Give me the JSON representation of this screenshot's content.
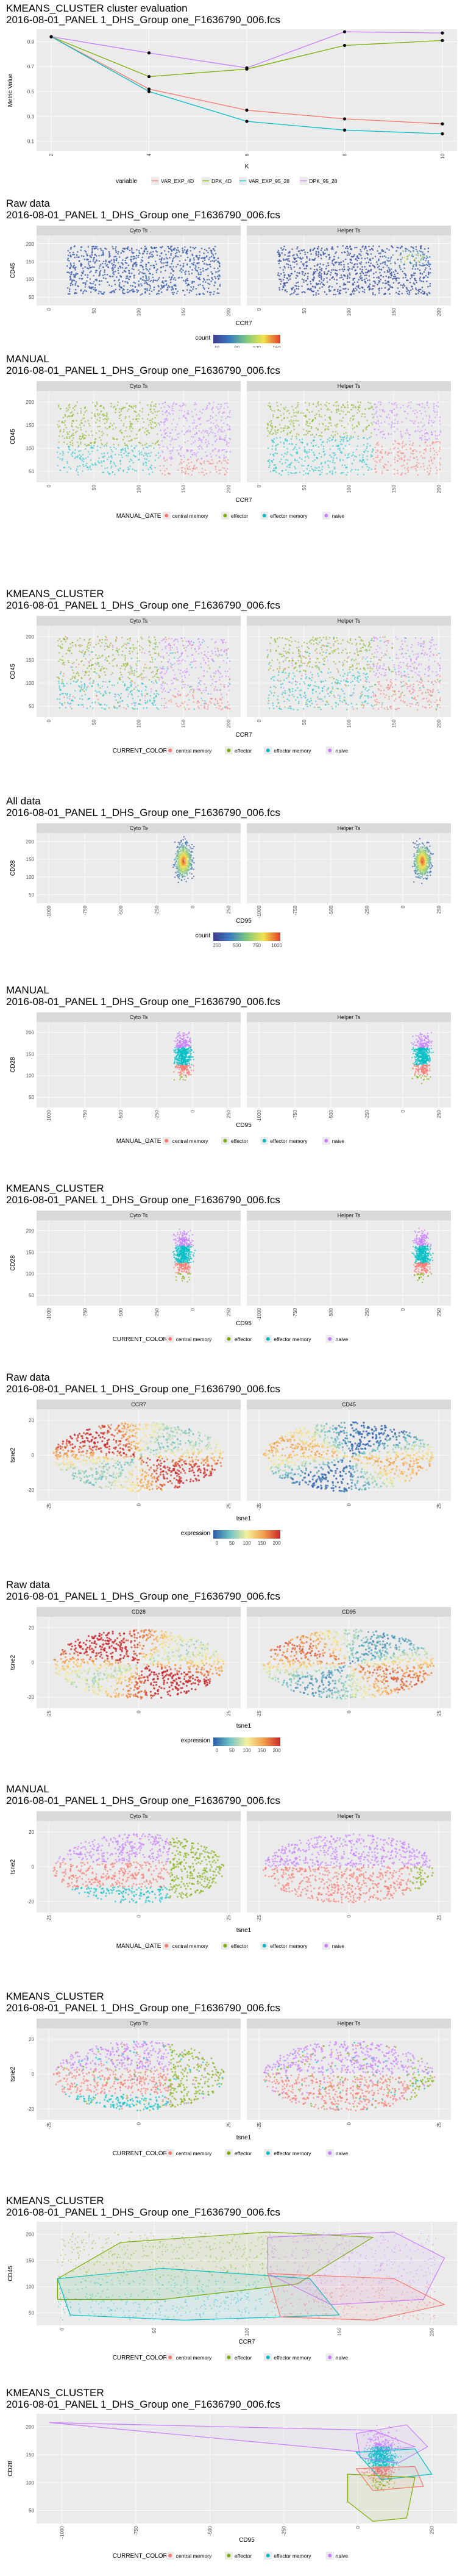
{
  "colors": {
    "central_memory": "#F8766D",
    "effector": "#7CAE00",
    "effector_memory": "#00BFC4",
    "naive": "#C77CFF",
    "panel_bg": "#EBEBEB",
    "strip_bg": "#D9D9D9",
    "grid": "#FFFFFF",
    "density_low": "#3F3B8E",
    "density_high": "#E23B2A"
  },
  "sections": [
    {
      "id": "kmeans-eval",
      "title_lines": [
        "KMEANS_CLUSTER cluster evaluation",
        "2016-08-01_PANEL 1_DHS_Group one_F1636790_006.fcs"
      ]
    },
    {
      "id": "raw-ccr7-cd45",
      "title_lines": [
        "Raw data",
        "2016-08-01_PANEL 1_DHS_Group one_F1636790_006.fcs"
      ],
      "facets": [
        "Cyto Ts",
        "Helper Ts"
      ],
      "xlabel": "CCR7",
      "ylabel": "CD45",
      "xticks": [
        "0",
        "50",
        "100",
        "150",
        "200"
      ],
      "yticks": [
        "50",
        "100",
        "150",
        "200"
      ],
      "legend_title": "count",
      "legend_ticks": [
        "40",
        "80",
        "120",
        "160"
      ]
    },
    {
      "id": "manual-ccr7-cd45",
      "title_lines": [
        "MANUAL",
        "2016-08-01_PANEL 1_DHS_Group one_F1636790_006.fcs"
      ],
      "facets": [
        "Cyto Ts",
        "Helper Ts"
      ],
      "xlabel": "CCR7",
      "ylabel": "CD45",
      "xticks": [
        "0",
        "50",
        "100",
        "150",
        "200"
      ],
      "yticks": [
        "50",
        "100",
        "150",
        "200"
      ],
      "legend_title": "MANUAL_GATE",
      "legend_items": [
        "central memory",
        "effector",
        "effector memory",
        "naive"
      ]
    },
    {
      "id": "kmeans-ccr7-cd45",
      "title_lines": [
        "KMEANS_CLUSTER",
        "2016-08-01_PANEL 1_DHS_Group one_F1636790_006.fcs"
      ],
      "facets": [
        "Cyto Ts",
        "Helper Ts"
      ],
      "xlabel": "CCR7",
      "ylabel": "CD45",
      "xticks": [
        "0",
        "50",
        "100",
        "150",
        "200"
      ],
      "yticks": [
        "50",
        "100",
        "150",
        "200"
      ],
      "legend_title": "CURRENT_COLOR",
      "legend_items": [
        "central memory",
        "effector",
        "effector memory",
        "naive"
      ]
    },
    {
      "id": "all-cd95-cd28",
      "title_lines": [
        "All data",
        "2016-08-01_PANEL 1_DHS_Group one_F1636790_006.fcs"
      ],
      "facets": [
        "Cyto Ts",
        "Helper Ts"
      ],
      "xlabel": "CD95",
      "ylabel": "CD28",
      "xticks": [
        "-1000",
        "-750",
        "-500",
        "-250",
        "0",
        "250"
      ],
      "yticks": [
        "50",
        "100",
        "150",
        "200"
      ],
      "legend_title": "count",
      "legend_ticks": [
        "250",
        "500",
        "750",
        "1000"
      ]
    },
    {
      "id": "manual-cd95-cd28",
      "title_lines": [
        "MANUAL",
        "2016-08-01_PANEL 1_DHS_Group one_F1636790_006.fcs"
      ],
      "facets": [
        "Cyto Ts",
        "Helper Ts"
      ],
      "xlabel": "CD95",
      "ylabel": "CD28",
      "xticks": [
        "-1000",
        "-750",
        "-500",
        "-250",
        "0",
        "250"
      ],
      "yticks": [
        "50",
        "100",
        "150",
        "200"
      ],
      "legend_title": "MANUAL_GATE",
      "legend_items": [
        "central memory",
        "effector",
        "effector memory",
        "naive"
      ]
    },
    {
      "id": "kmeans-cd95-cd28",
      "title_lines": [
        "KMEANS_CLUSTER",
        "2016-08-01_PANEL 1_DHS_Group one_F1636790_006.fcs"
      ],
      "facets": [
        "Cyto Ts",
        "Helper Ts"
      ],
      "xlabel": "CD95",
      "ylabel": "CD28",
      "xticks": [
        "-1000",
        "-750",
        "-500",
        "-250",
        "0",
        "250"
      ],
      "yticks": [
        "50",
        "100",
        "150",
        "200"
      ],
      "legend_title": "CURRENT_COLOR",
      "legend_items": [
        "central memory",
        "effector",
        "effector memory",
        "naive"
      ]
    },
    {
      "id": "raw-tsne-ccr7-cd45",
      "title_lines": [
        "Raw data",
        "2016-08-01_PANEL 1_DHS_Group one_F1636790_006.fcs"
      ],
      "facets": [
        "CCR7",
        "CD45"
      ],
      "xlabel": "tsne1",
      "ylabel": "tsne2",
      "xticks": [
        "-25",
        "0",
        "25"
      ],
      "yticks": [
        "-20",
        "0",
        "20"
      ],
      "legend_title": "expression",
      "legend_ticks": [
        "0",
        "50",
        "100",
        "150",
        "200"
      ]
    },
    {
      "id": "raw-tsne-cd28-cd95",
      "title_lines": [
        "Raw data",
        "2016-08-01_PANEL 1_DHS_Group one_F1636790_006.fcs"
      ],
      "facets": [
        "CD28",
        "CD95"
      ],
      "xlabel": "tsne1",
      "ylabel": "tsne2",
      "xticks": [
        "-25",
        "0",
        "25"
      ],
      "yticks": [
        "-20",
        "0",
        "20"
      ],
      "legend_title": "expression",
      "legend_ticks": [
        "0",
        "50",
        "100",
        "150",
        "200"
      ]
    },
    {
      "id": "manual-tsne",
      "title_lines": [
        "MANUAL",
        "2016-08-01_PANEL 1_DHS_Group one_F1636790_006.fcs"
      ],
      "facets": [
        "Cyto Ts",
        "Helper Ts"
      ],
      "xlabel": "tsne1",
      "ylabel": "tsne2",
      "xticks": [
        "-25",
        "0",
        "25"
      ],
      "yticks": [
        "-20",
        "0",
        "20"
      ],
      "legend_title": "MANUAL_GATE",
      "legend_items": [
        "central memory",
        "effector",
        "effector memory",
        "naive"
      ]
    },
    {
      "id": "kmeans-tsne",
      "title_lines": [
        "KMEANS_CLUSTER",
        "2016-08-01_PANEL 1_DHS_Group one_F1636790_006.fcs"
      ],
      "facets": [
        "Cyto Ts",
        "Helper Ts"
      ],
      "xlabel": "tsne1",
      "ylabel": "tsne2",
      "xticks": [
        "-25",
        "0",
        "25"
      ],
      "yticks": [
        "-20",
        "0",
        "20"
      ],
      "legend_title": "CURRENT_COLOR",
      "legend_items": [
        "central memory",
        "effector",
        "effector memory",
        "naive"
      ]
    },
    {
      "id": "kmeans-hull-ccr7-cd45",
      "title_lines": [
        "KMEANS_CLUSTER",
        "2016-08-01_PANEL 1_DHS_Group one_F1636790_006.fcs"
      ],
      "xlabel": "CCR7",
      "ylabel": "CD45",
      "xticks": [
        "0",
        "50",
        "100",
        "150",
        "200"
      ],
      "yticks": [
        "50",
        "100",
        "150",
        "200"
      ],
      "legend_title": "CURRENT_COLOR",
      "legend_items": [
        "central memory",
        "effector",
        "effector memory",
        "naive"
      ]
    },
    {
      "id": "kmeans-hull-cd95-cd28",
      "title_lines": [
        "KMEANS_CLUSTER",
        "2016-08-01_PANEL 1_DHS_Group one_F1636790_006.fcs"
      ],
      "xlabel": "CD95",
      "ylabel": "CD28",
      "xticks": [
        "-1000",
        "-750",
        "-500",
        "-250",
        "0",
        "250"
      ],
      "yticks": [
        "50",
        "100",
        "150",
        "200"
      ],
      "legend_title": "CURRENT_COLOR",
      "legend_items": [
        "central memory",
        "effector",
        "effector memory",
        "naive"
      ]
    }
  ],
  "chart_data": [
    {
      "type": "line",
      "title": "KMEANS_CLUSTER cluster evaluation",
      "subtitle": "2016-08-01_PANEL 1_DHS_Group one_F1636790_006.fcs",
      "xlabel": "K",
      "ylabel": "Metric Value",
      "x": [
        2,
        4,
        6,
        8,
        10
      ],
      "xlim": [
        1.7,
        10.3
      ],
      "ylim": [
        0.02,
        1.0
      ],
      "yticks": [
        0.1,
        0.3,
        0.5,
        0.7,
        0.9
      ],
      "xticks": [
        2,
        4,
        6,
        8,
        10
      ],
      "grid": true,
      "legend_title": "variable",
      "legend_position": "bottom",
      "series": [
        {
          "name": "VAR_EXP_4D",
          "color": "#F8766D",
          "values": [
            0.94,
            0.52,
            0.35,
            0.28,
            0.24
          ]
        },
        {
          "name": "DPK_4D",
          "color": "#7CAE00",
          "values": [
            0.94,
            0.62,
            0.68,
            0.87,
            0.91
          ]
        },
        {
          "name": "VAR_EXP_95_28",
          "color": "#00BFC4",
          "values": [
            0.94,
            0.5,
            0.26,
            0.19,
            0.16
          ]
        },
        {
          "name": "DPK_95_28",
          "color": "#C77CFF",
          "values": [
            0.94,
            0.81,
            0.69,
            0.98,
            0.97
          ]
        }
      ]
    }
  ]
}
